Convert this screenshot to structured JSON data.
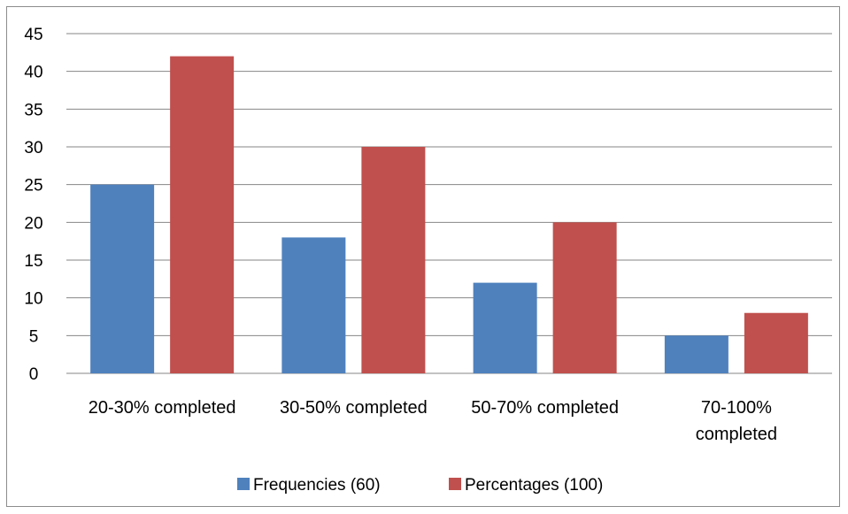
{
  "chart_data": {
    "type": "bar",
    "categories": [
      [
        "20-30% completed"
      ],
      [
        "30-50% completed"
      ],
      [
        "50-70% completed"
      ],
      [
        "70-100%",
        "completed"
      ]
    ],
    "series": [
      {
        "name": "Frequencies (60)",
        "values": [
          25,
          18,
          12,
          5
        ],
        "color": "#4f81bd"
      },
      {
        "name": "Percentages (100)",
        "values": [
          42,
          30,
          20,
          8
        ],
        "color": "#c0504d"
      }
    ],
    "ylim": [
      0,
      45
    ],
    "yticks": [
      0,
      5,
      10,
      15,
      20,
      25,
      30,
      35,
      40,
      45
    ],
    "grid": true,
    "legend_position": "bottom",
    "gridline_color": "#868686"
  }
}
